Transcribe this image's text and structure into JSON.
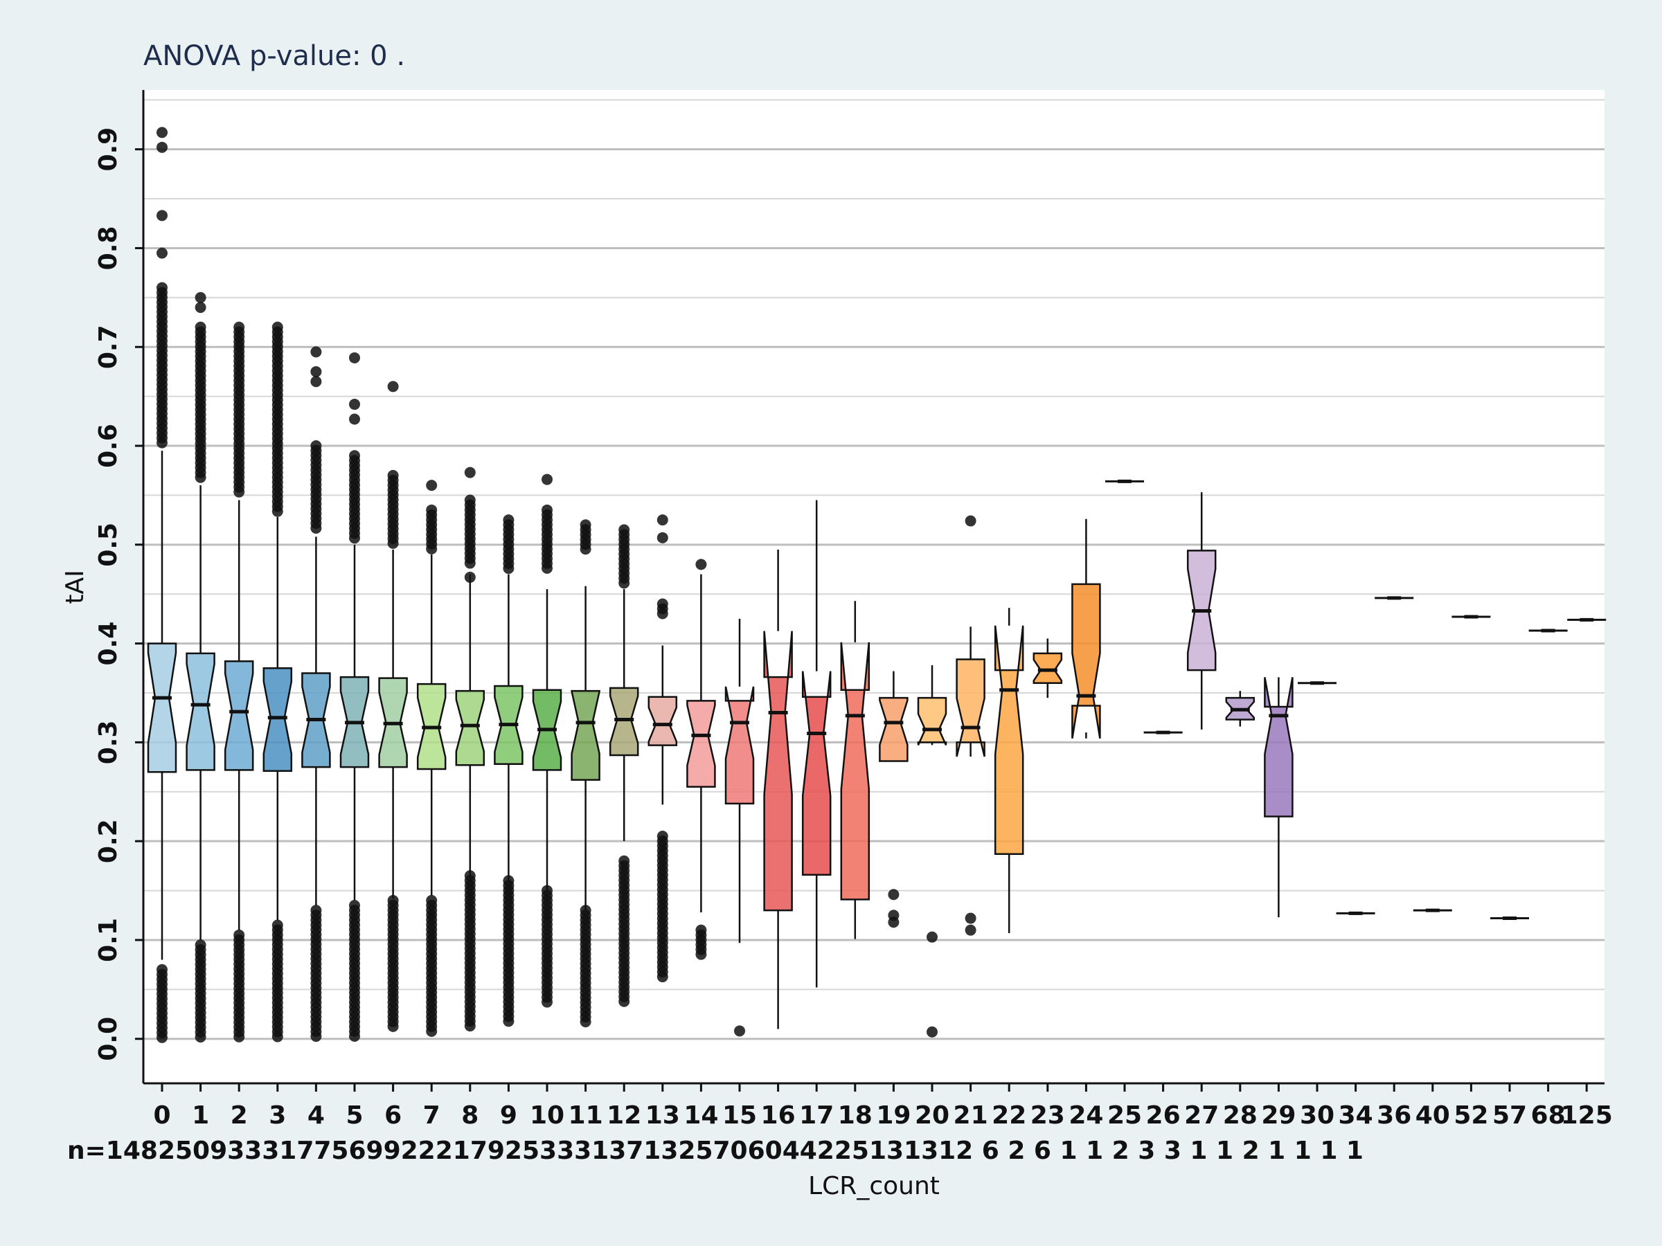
{
  "chart_data": {
    "type": "box",
    "title": "ANOVA p-value:  0 .",
    "xlabel": "LCR_count",
    "ylabel": "tAI",
    "ylim": [
      -0.045,
      0.96
    ],
    "yticks": [
      "0.0",
      "0.1",
      "0.2",
      "0.3",
      "0.4",
      "0.5",
      "0.6",
      "0.7",
      "0.8",
      "0.9"
    ],
    "grid": "horizontal",
    "notched": true,
    "n_label_prefix": "n=",
    "count_row_text": "n=14825093331775699222179253331371325706044225131312 6 2 6 1 1 2 3 3 1 1 2 1 1 1 1",
    "boxes": [
      {
        "x": "0",
        "n": "14825",
        "color": "#a6cee3",
        "q1": 0.27,
        "median": 0.345,
        "q3": 0.4,
        "whislo": 0.08,
        "whishi": 0.595,
        "out_lo": [
          0.0,
          0.07
        ],
        "out_hi": [
          0.6,
          0.76
        ],
        "extra_out": [
          0.795,
          0.833,
          0.902,
          0.917
        ]
      },
      {
        "x": "1",
        "n": "9333",
        "color": "#8dbfdd",
        "q1": 0.272,
        "median": 0.338,
        "q3": 0.39,
        "whislo": 0.1,
        "whishi": 0.56,
        "out_lo": [
          0.0,
          0.095
        ],
        "out_hi": [
          0.565,
          0.72
        ],
        "extra_out": [
          0.74,
          0.75
        ]
      },
      {
        "x": "2",
        "n": "1775",
        "color": "#6eabd3",
        "q1": 0.272,
        "median": 0.331,
        "q3": 0.382,
        "whislo": 0.11,
        "whishi": 0.545,
        "out_lo": [
          0.0,
          0.105
        ],
        "out_hi": [
          0.55,
          0.72
        ],
        "extra_out": []
      },
      {
        "x": "3",
        "n": "699",
        "color": "#4a91c2",
        "q1": 0.271,
        "median": 0.325,
        "q3": 0.375,
        "whislo": 0.12,
        "whishi": 0.528,
        "out_lo": [
          0.0,
          0.115
        ],
        "out_hi": [
          0.53,
          0.72
        ],
        "extra_out": []
      },
      {
        "x": "4",
        "n": "222",
        "color": "#5f9fc6",
        "q1": 0.275,
        "median": 0.323,
        "q3": 0.37,
        "whislo": 0.135,
        "whishi": 0.508,
        "out_lo": [
          0.0,
          0.13
        ],
        "out_hi": [
          0.515,
          0.6
        ],
        "extra_out": [
          0.665,
          0.675,
          0.695
        ]
      },
      {
        "x": "5",
        "n": "179",
        "color": "#7fb3b6",
        "q1": 0.275,
        "median": 0.32,
        "q3": 0.366,
        "whislo": 0.14,
        "whishi": 0.5,
        "out_lo": [
          0.0,
          0.135
        ],
        "out_hi": [
          0.505,
          0.59
        ],
        "extra_out": [
          0.627,
          0.642,
          0.689
        ]
      },
      {
        "x": "6",
        "n": "253",
        "color": "#a2cfa3",
        "q1": 0.275,
        "median": 0.319,
        "q3": 0.365,
        "whislo": 0.142,
        "whishi": 0.495,
        "out_lo": [
          0.01,
          0.14
        ],
        "out_hi": [
          0.5,
          0.57
        ],
        "extra_out": [
          0.66
        ]
      },
      {
        "x": "7",
        "n": "331",
        "color": "#b2df8a",
        "q1": 0.273,
        "median": 0.315,
        "q3": 0.359,
        "whislo": 0.145,
        "whishi": 0.49,
        "out_lo": [
          0.005,
          0.14
        ],
        "out_hi": [
          0.495,
          0.535
        ],
        "extra_out": [
          0.56
        ]
      },
      {
        "x": "8",
        "n": "371",
        "color": "#9fd47d",
        "q1": 0.277,
        "median": 0.317,
        "q3": 0.352,
        "whislo": 0.165,
        "whishi": 0.47,
        "out_lo": [
          0.01,
          0.165
        ],
        "out_hi": [
          0.48,
          0.545
        ],
        "extra_out": [
          0.467,
          0.573
        ]
      },
      {
        "x": "9",
        "n": "325",
        "color": "#7cc466",
        "q1": 0.278,
        "median": 0.318,
        "q3": 0.357,
        "whislo": 0.16,
        "whishi": 0.47,
        "out_lo": [
          0.015,
          0.16
        ],
        "out_hi": [
          0.475,
          0.525
        ],
        "extra_out": []
      },
      {
        "x": "10",
        "n": "706",
        "color": "#5caf4a",
        "q1": 0.272,
        "median": 0.313,
        "q3": 0.353,
        "whislo": 0.15,
        "whishi": 0.455,
        "out_lo": [
          0.035,
          0.15
        ],
        "out_hi": [
          0.475,
          0.535
        ],
        "extra_out": [
          0.566
        ]
      },
      {
        "x": "11",
        "n": "044",
        "color": "#77a758",
        "q1": 0.262,
        "median": 0.32,
        "q3": 0.352,
        "whislo": 0.13,
        "whishi": 0.458,
        "out_lo": [
          0.015,
          0.13
        ],
        "out_hi": [
          0.495,
          0.52
        ],
        "extra_out": []
      },
      {
        "x": "12",
        "n": "225",
        "color": "#a9a878",
        "q1": 0.287,
        "median": 0.323,
        "q3": 0.355,
        "whislo": 0.2,
        "whishi": 0.455,
        "out_lo": [
          0.035,
          0.18
        ],
        "out_hi": [
          0.46,
          0.515
        ],
        "extra_out": []
      },
      {
        "x": "13",
        "n": "131",
        "color": "#e6aba2",
        "q1": 0.297,
        "median": 0.318,
        "q3": 0.346,
        "whislo": 0.237,
        "whishi": 0.398,
        "out_lo": [
          0.06,
          0.205
        ],
        "out_hi": [
          0.43,
          0.44
        ],
        "extra_out": [
          0.507,
          0.525
        ]
      },
      {
        "x": "14",
        "n": "312",
        "color": "#f59c9c",
        "q1": 0.255,
        "median": 0.307,
        "q3": 0.342,
        "whislo": 0.128,
        "whishi": 0.47,
        "out_lo": [
          0.085,
          0.11
        ],
        "out_hi": [],
        "extra_out": [
          0.48
        ]
      },
      {
        "x": "15",
        "n": "6",
        "color": "#ee7a78",
        "q1": 0.238,
        "median": 0.32,
        "q3": 0.342,
        "whislo": 0.097,
        "whishi": 0.425,
        "out_lo": [],
        "out_hi": [],
        "extra_out": [
          0.008
        ]
      },
      {
        "x": "16",
        "n": "2",
        "color": "#e85858",
        "q1": 0.13,
        "median": 0.33,
        "q3": 0.366,
        "whislo": 0.01,
        "whishi": 0.495,
        "out_lo": [],
        "out_hi": [],
        "extra_out": []
      },
      {
        "x": "17",
        "n": "6",
        "color": "#e84d4d",
        "q1": 0.166,
        "median": 0.309,
        "q3": 0.346,
        "whislo": 0.052,
        "whishi": 0.545,
        "out_lo": [],
        "out_hi": [],
        "extra_out": []
      },
      {
        "x": "18",
        "n": "1",
        "color": "#ee6c5c",
        "q1": 0.141,
        "median": 0.327,
        "q3": 0.353,
        "whislo": 0.101,
        "whishi": 0.443,
        "out_lo": [],
        "out_hi": [],
        "extra_out": []
      },
      {
        "x": "19",
        "n": "1",
        "color": "#f7a06a",
        "q1": 0.281,
        "median": 0.32,
        "q3": 0.345,
        "whislo": 0.281,
        "whishi": 0.372,
        "out_lo": [],
        "out_hi": [],
        "extra_out": [
          0.118,
          0.125,
          0.146
        ]
      },
      {
        "x": "20",
        "n": "2",
        "color": "#fdbf6f",
        "q1": 0.3,
        "median": 0.313,
        "q3": 0.345,
        "whislo": 0.3,
        "whishi": 0.378,
        "out_lo": [],
        "out_hi": [],
        "extra_out": [
          0.007,
          0.103
        ]
      },
      {
        "x": "21",
        "n": "3",
        "color": "#fdb462",
        "q1": 0.3,
        "median": 0.315,
        "q3": 0.384,
        "whislo": 0.3,
        "whishi": 0.417,
        "out_lo": [],
        "out_hi": [],
        "extra_out": [
          0.11,
          0.122,
          0.524
        ]
      },
      {
        "x": "22",
        "n": "3",
        "color": "#fda744",
        "q1": 0.187,
        "median": 0.353,
        "q3": 0.373,
        "whislo": 0.107,
        "whishi": 0.436,
        "out_lo": [],
        "out_hi": [],
        "extra_out": []
      },
      {
        "x": "23",
        "n": "1",
        "color": "#fd9c37",
        "q1": 0.36,
        "median": 0.373,
        "q3": 0.39,
        "whislo": 0.345,
        "whishi": 0.405,
        "out_lo": [],
        "out_hi": [],
        "extra_out": []
      },
      {
        "x": "24",
        "n": "1",
        "color": "#f68f2b",
        "q1": 0.337,
        "median": 0.347,
        "q3": 0.46,
        "whislo": 0.31,
        "whishi": 0.526,
        "out_lo": [],
        "out_hi": [],
        "extra_out": []
      },
      {
        "x": "25",
        "n": "2",
        "color": "#f08a24",
        "single": 0.564
      },
      {
        "x": "26",
        "n": "1",
        "color": "#f08a24",
        "single": 0.31
      },
      {
        "x": "27",
        "n": "1",
        "color": "#cab2d6",
        "q1": 0.373,
        "median": 0.433,
        "q3": 0.494,
        "whislo": 0.313,
        "whishi": 0.553,
        "out_lo": [],
        "out_hi": [],
        "extra_out": []
      },
      {
        "x": "28",
        "n": "1",
        "color": "#b49bcc",
        "q1": 0.323,
        "median": 0.333,
        "q3": 0.345,
        "whislo": 0.316,
        "whishi": 0.352,
        "out_lo": [],
        "out_hi": [],
        "extra_out": []
      },
      {
        "x": "29",
        "n": "1",
        "color": "#9a79bd",
        "q1": 0.225,
        "median": 0.327,
        "q3": 0.336,
        "whislo": 0.123,
        "whishi": 0.336,
        "out_lo": [],
        "out_hi": [],
        "extra_out": []
      },
      {
        "x": "30",
        "n": "1",
        "color": "#8a65b3",
        "single": 0.36
      },
      {
        "x": "34",
        "n": "1",
        "color": "#7b55aa",
        "single": 0.127
      },
      {
        "x": "36",
        "n": "1",
        "color": "#6d4aa0",
        "single": 0.446
      },
      {
        "x": "40",
        "n": "1",
        "color": "#6d4aa0",
        "single": 0.13
      },
      {
        "x": "52",
        "n": "1",
        "color": "#6d4aa0",
        "single": 0.427
      },
      {
        "x": "57",
        "n": "1",
        "color": "#6d4aa0",
        "single": 0.122
      },
      {
        "x": "68",
        "n": "1",
        "color": "#6d4aa0",
        "single": 0.413
      },
      {
        "x": "125",
        "n": "1",
        "color": "#6d4aa0",
        "single": 0.424
      }
    ]
  }
}
